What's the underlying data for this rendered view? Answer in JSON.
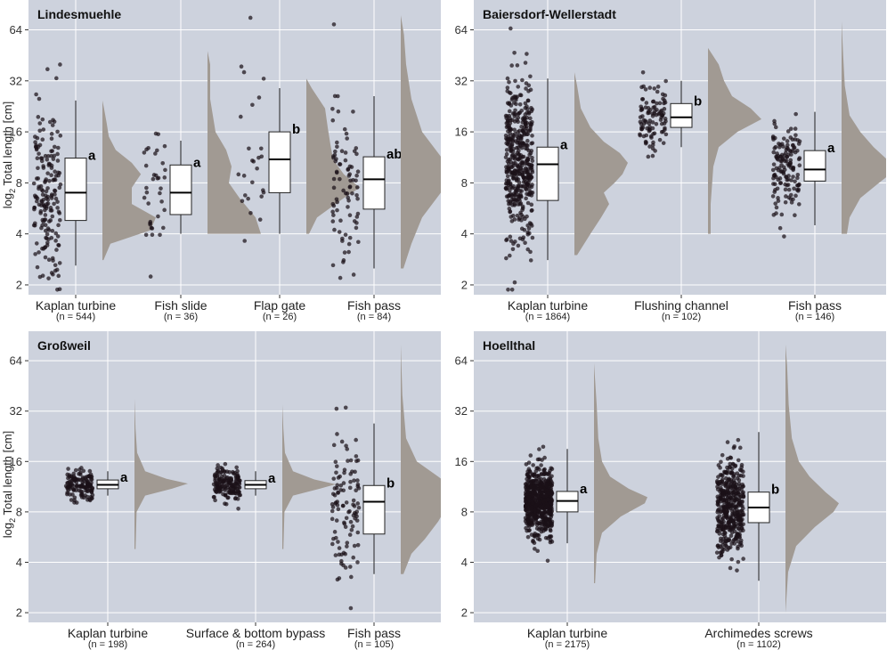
{
  "colors": {
    "panel_bg": "#cdd2dd",
    "grid": "#ffffff",
    "points": "#1b1118",
    "violin": "#a19a93",
    "box_fill": "#ffffff",
    "box_stroke": "#222222"
  },
  "y_axis": {
    "label_prefix": "log",
    "label_sub": "2",
    "label_suffix": " Total length [cm]"
  },
  "chart_data": [
    {
      "type": "box",
      "title": "Lindesmuehle",
      "ylim": [
        1.75,
        96
      ],
      "yticks": [
        2,
        4,
        8,
        16,
        32,
        64
      ],
      "groups": [
        {
          "name": "Kaplan turbine",
          "n": "(n = 544)",
          "min": 2.6,
          "q1": 4.8,
          "median": 7.0,
          "q3": 11.2,
          "max": 24.5,
          "letter": "a",
          "count": 180,
          "density": [
            [
              2.8,
              0.02
            ],
            [
              3.5,
              0.15
            ],
            [
              4.2,
              0.9
            ],
            [
              5.0,
              1.0
            ],
            [
              6.0,
              0.55
            ],
            [
              7.5,
              0.55
            ],
            [
              9.0,
              0.72
            ],
            [
              10.5,
              0.55
            ],
            [
              12.5,
              0.25
            ],
            [
              15,
              0.12
            ],
            [
              18,
              0.08
            ],
            [
              22,
              0.03
            ],
            [
              24.5,
              0.0
            ]
          ]
        },
        {
          "name": "Fish slide",
          "n": "(n = 36)",
          "min": 4.0,
          "q1": 5.2,
          "median": 7.0,
          "q3": 10.2,
          "max": 14.2,
          "letter": "a",
          "count": 36,
          "density": [
            [
              4.0,
              1.0
            ],
            [
              5.0,
              0.9
            ],
            [
              6.5,
              0.6
            ],
            [
              8.0,
              0.4
            ],
            [
              10,
              0.45
            ],
            [
              12.5,
              0.35
            ],
            [
              16,
              0.15
            ],
            [
              25,
              0.05
            ],
            [
              40,
              0.05
            ],
            [
              48,
              0.0
            ]
          ]
        },
        {
          "name": "Flap gate",
          "n": "(n = 26)",
          "min": 4.0,
          "q1": 7.0,
          "median": 11.0,
          "q3": 16.0,
          "max": 29.0,
          "letter": "b",
          "count": 26,
          "density": [
            [
              4.0,
              0.05
            ],
            [
              5.0,
              0.2
            ],
            [
              6.5,
              0.7
            ],
            [
              7.5,
              1.0
            ],
            [
              9,
              0.7
            ],
            [
              11,
              0.5
            ],
            [
              13.5,
              0.45
            ],
            [
              17,
              0.4
            ],
            [
              22,
              0.35
            ],
            [
              29,
              0.1
            ],
            [
              33,
              0.0
            ]
          ]
        },
        {
          "name": "Fish pass",
          "n": "(n = 84)",
          "min": 2.5,
          "q1": 5.6,
          "median": 8.4,
          "q3": 11.4,
          "max": 26.0,
          "letter": "ab",
          "count": 84,
          "density": [
            [
              2.5,
              0.05
            ],
            [
              3.5,
              0.2
            ],
            [
              5,
              0.4
            ],
            [
              7,
              0.75
            ],
            [
              9,
              1.0
            ],
            [
              12,
              0.7
            ],
            [
              16,
              0.4
            ],
            [
              25,
              0.2
            ],
            [
              40,
              0.1
            ],
            [
              60,
              0.06
            ],
            [
              78,
              0.0
            ]
          ]
        }
      ]
    },
    {
      "type": "box",
      "title": "Baiersdorf-Wellerstadt",
      "ylim": [
        1.75,
        96
      ],
      "yticks": [
        2,
        4,
        8,
        16,
        32,
        64
      ],
      "groups": [
        {
          "name": "Kaplan turbine",
          "n": "(n = 1864)",
          "min": 2.8,
          "q1": 6.3,
          "median": 10.3,
          "q3": 13.0,
          "max": 33.0,
          "letter": "a",
          "count": 450,
          "density": [
            [
              3.0,
              0.05
            ],
            [
              4.0,
              0.3
            ],
            [
              5,
              0.5
            ],
            [
              6,
              0.65
            ],
            [
              7,
              0.55
            ],
            [
              8,
              0.75
            ],
            [
              9,
              0.9
            ],
            [
              10.5,
              1.0
            ],
            [
              12,
              0.85
            ],
            [
              14,
              0.55
            ],
            [
              17,
              0.3
            ],
            [
              22,
              0.12
            ],
            [
              30,
              0.05
            ],
            [
              36,
              0.0
            ]
          ]
        },
        {
          "name": "Flushing channel",
          "n": "(n = 102)",
          "min": 13.0,
          "q1": 17.0,
          "median": 19.5,
          "q3": 23.5,
          "max": 32.0,
          "letter": "b",
          "count": 102,
          "density": [
            [
              4,
              0.05
            ],
            [
              6,
              0.05
            ],
            [
              10,
              0.1
            ],
            [
              13,
              0.2
            ],
            [
              16,
              0.55
            ],
            [
              19,
              1.0
            ],
            [
              22,
              0.8
            ],
            [
              26,
              0.45
            ],
            [
              32,
              0.3
            ],
            [
              40,
              0.2
            ],
            [
              50,
              0.0
            ]
          ]
        },
        {
          "name": "Fish pass",
          "n": "(n = 146)",
          "min": 4.5,
          "q1": 8.2,
          "median": 9.6,
          "q3": 12.4,
          "max": 21.0,
          "letter": "a",
          "count": 146,
          "density": [
            [
              4,
              0.1
            ],
            [
              5,
              0.15
            ],
            [
              6.5,
              0.35
            ],
            [
              8,
              0.7
            ],
            [
              9.5,
              1.0
            ],
            [
              11,
              0.85
            ],
            [
              13,
              0.6
            ],
            [
              16,
              0.35
            ],
            [
              20,
              0.15
            ],
            [
              30,
              0.06
            ],
            [
              45,
              0.03
            ],
            [
              72,
              0.0
            ]
          ]
        }
      ]
    },
    {
      "type": "box",
      "title": "Großweil",
      "ylim": [
        1.75,
        96
      ],
      "yticks": [
        2,
        4,
        8,
        16,
        32,
        64
      ],
      "groups": [
        {
          "name": "Kaplan turbine",
          "n": "(n = 198)",
          "min": 10.0,
          "q1": 11.0,
          "median": 11.6,
          "q3": 12.4,
          "max": 14.0,
          "letter": "a",
          "count": 140,
          "density": [
            [
              4.8,
              0.02
            ],
            [
              8,
              0.04
            ],
            [
              10,
              0.2
            ],
            [
              11,
              0.7
            ],
            [
              11.8,
              1.0
            ],
            [
              12.6,
              0.6
            ],
            [
              14,
              0.2
            ],
            [
              18,
              0.05
            ],
            [
              25,
              0.02
            ],
            [
              38,
              0.0
            ]
          ]
        },
        {
          "name": "Surface & bottom bypass",
          "n": "(n = 264)",
          "min": 10.0,
          "q1": 11.0,
          "median": 11.6,
          "q3": 12.3,
          "max": 14.0,
          "letter": "a",
          "count": 160,
          "density": [
            [
              4.8,
              0.02
            ],
            [
              8,
              0.04
            ],
            [
              10,
              0.2
            ],
            [
              11,
              0.7
            ],
            [
              11.7,
              1.0
            ],
            [
              12.5,
              0.6
            ],
            [
              14,
              0.2
            ],
            [
              18,
              0.05
            ],
            [
              25,
              0.02
            ],
            [
              35,
              0.0
            ]
          ]
        },
        {
          "name": "Fish pass",
          "n": "(n = 105)",
          "min": 3.4,
          "q1": 5.9,
          "median": 9.2,
          "q3": 11.5,
          "max": 27.0,
          "letter": "b",
          "count": 105,
          "density": [
            [
              3.4,
              0.05
            ],
            [
              4.5,
              0.2
            ],
            [
              5.5,
              0.45
            ],
            [
              7,
              0.7
            ],
            [
              9,
              0.9
            ],
            [
              11,
              1.0
            ],
            [
              13,
              0.7
            ],
            [
              16,
              0.3
            ],
            [
              22,
              0.1
            ],
            [
              40,
              0.03
            ],
            [
              80,
              0.0
            ]
          ]
        }
      ]
    },
    {
      "type": "box",
      "title": "Hoellthal",
      "ylim": [
        1.75,
        96
      ],
      "yticks": [
        2,
        4,
        8,
        16,
        32,
        64
      ],
      "groups": [
        {
          "name": "Kaplan turbine",
          "n": "(n = 2175)",
          "min": 5.2,
          "q1": 8.0,
          "median": 9.3,
          "q3": 10.6,
          "max": 19.0,
          "letter": "a",
          "count": 650,
          "density": [
            [
              3.0,
              0.02
            ],
            [
              4.5,
              0.05
            ],
            [
              6,
              0.15
            ],
            [
              7.5,
              0.5
            ],
            [
              9,
              0.95
            ],
            [
              9.8,
              1.0
            ],
            [
              11,
              0.65
            ],
            [
              13,
              0.3
            ],
            [
              16,
              0.15
            ],
            [
              22,
              0.08
            ],
            [
              35,
              0.05
            ],
            [
              62,
              0.0
            ]
          ]
        },
        {
          "name": "Archimedes screws",
          "n": "(n = 1102)",
          "min": 3.1,
          "q1": 6.9,
          "median": 8.5,
          "q3": 10.5,
          "max": 24.0,
          "letter": "b",
          "count": 420,
          "density": [
            [
              2.0,
              0.0
            ],
            [
              3.5,
              0.05
            ],
            [
              5,
              0.2
            ],
            [
              6.5,
              0.55
            ],
            [
              8,
              0.9
            ],
            [
              9,
              1.0
            ],
            [
              10.5,
              0.75
            ],
            [
              13,
              0.45
            ],
            [
              16,
              0.25
            ],
            [
              22,
              0.12
            ],
            [
              35,
              0.06
            ],
            [
              60,
              0.03
            ],
            [
              80,
              0.0
            ]
          ]
        }
      ]
    }
  ]
}
